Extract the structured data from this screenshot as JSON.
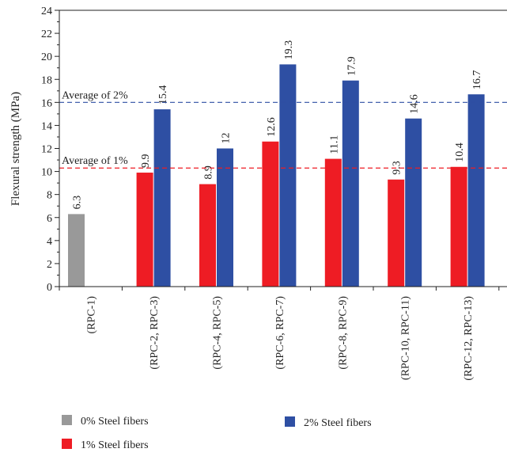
{
  "chart_data": {
    "type": "bar",
    "ylabel": "Flexural strength (MPa)",
    "ylim": [
      0,
      24
    ],
    "yticks": [
      0,
      2,
      4,
      6,
      8,
      10,
      12,
      14,
      16,
      18,
      20,
      22,
      24
    ],
    "categories": [
      "(RPC-1)",
      "(RPC-2, RPC-3)",
      "(RPC-4, RPC-5)",
      "(RPC-6, RPC-7)",
      "(RPC-8, RPC-9)",
      "(RPC-10, RPC-11)",
      "(RPC-12, RPC-13)"
    ],
    "series": [
      {
        "name": "0% Steel fibers",
        "color": "#999999",
        "values": [
          6.3,
          null,
          null,
          null,
          null,
          null,
          null
        ],
        "labels": [
          "6.3",
          null,
          null,
          null,
          null,
          null,
          null
        ]
      },
      {
        "name": "1% Steel fibers",
        "color": "#ee1c24",
        "values": [
          null,
          9.9,
          8.9,
          12.6,
          11.1,
          9.3,
          10.4
        ],
        "labels": [
          null,
          "9.9",
          "8.9",
          "12.6",
          "11.1",
          "9.3",
          "10.4"
        ]
      },
      {
        "name": "2% Steel fibers",
        "color": "#2e4fa3",
        "values": [
          null,
          15.4,
          12,
          19.3,
          17.9,
          14.6,
          16.7
        ],
        "labels": [
          null,
          "15.4",
          "12",
          "19.3",
          "17.9",
          "14.6",
          "16.7"
        ]
      }
    ],
    "reference_lines": [
      {
        "label": "Average of 2%",
        "value": 16.0,
        "color": "#2e4fa3"
      },
      {
        "label": "Average of 1%",
        "value": 10.3,
        "color": "#ee1c24"
      }
    ],
    "legend": {
      "position": "bottom"
    }
  }
}
